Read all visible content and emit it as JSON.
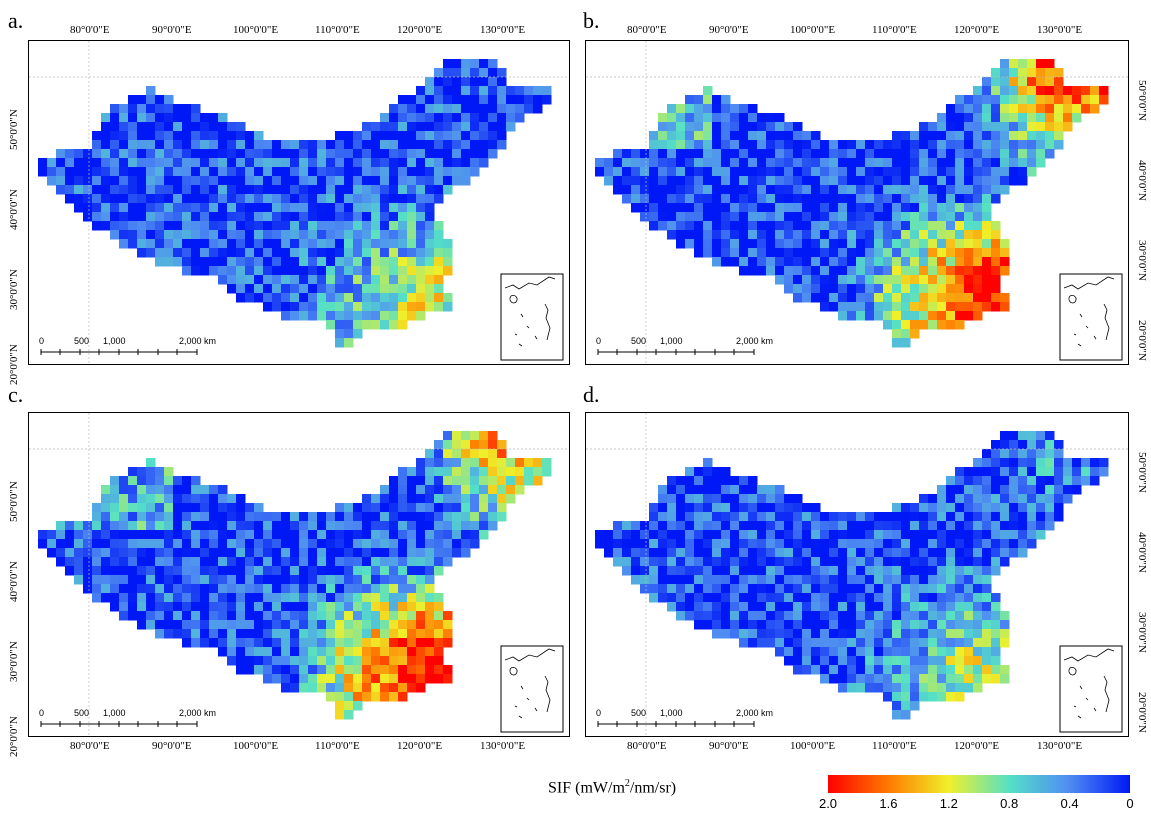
{
  "figure": {
    "panels": [
      {
        "id": "a",
        "label": "a.",
        "lon_labels_top": [
          "80°0'0\"E",
          "90°0'0\"E",
          "100°0'0\"E",
          "110°0'0\"E",
          "120°0'0\"E",
          "130°0'0\"E"
        ],
        "lat_labels_left": [
          "50°0'0\"N",
          "40°0'0\"N",
          "30°0'0\"N",
          "20°0'0\"N"
        ],
        "scale_labels": [
          "0",
          "500",
          "1,000",
          "2,000 km"
        ]
      },
      {
        "id": "b",
        "label": "b.",
        "lon_labels_top": [
          "80°0'0\"E",
          "90°0'0\"E",
          "100°0'0\"E",
          "110°0'0\"E",
          "120°0'0\"E",
          "130°0'0\"E"
        ],
        "lat_labels_right": [
          "50°0'0\"N",
          "40°0'0\"N",
          "30°0'0\"N",
          "20°0'0\"N"
        ],
        "scale_labels": [
          "0",
          "500",
          "1,000",
          "2,000 km"
        ]
      },
      {
        "id": "c",
        "label": "c.",
        "lon_labels_bottom": [
          "80°0'0\"E",
          "90°0'0\"E",
          "100°0'0\"E",
          "110°0'0\"E",
          "120°0'0\"E",
          "130°0'0\"E"
        ],
        "lat_labels_left": [
          "50°0'0\"N",
          "40°0'0\"N",
          "30°0'0\"N",
          "20°0'0\"N"
        ],
        "scale_labels": [
          "0",
          "500",
          "1,000",
          "2,000 km"
        ]
      },
      {
        "id": "d",
        "label": "d.",
        "lon_labels_bottom": [
          "80°0'0\"E",
          "90°0'0\"E",
          "100°0'0\"E",
          "110°0'0\"E",
          "120°0'0\"E",
          "130°0'0\"E"
        ],
        "lat_labels_right": [
          "50°0'0\"N",
          "40°0'0\"N",
          "30°0'0\"N",
          "20°0'0\"N"
        ],
        "scale_labels": [
          "0",
          "500",
          "1,000",
          "2,000 km"
        ]
      }
    ],
    "legend": {
      "title": "SIF (mW/m",
      "title_sup": "2",
      "title_end": "/nm/sr)",
      "ticks": [
        "2.0",
        "1.6",
        "1.2",
        "0.8",
        "0.4",
        "0"
      ],
      "colors": [
        "#ff0000",
        "#ff7a00",
        "#f0f02a",
        "#55e0c6",
        "#4f8cf2",
        "#0018f5"
      ]
    }
  }
}
